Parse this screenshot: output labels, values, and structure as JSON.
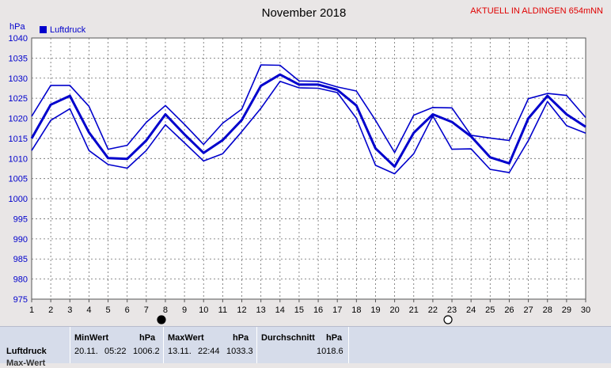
{
  "chart_data": {
    "type": "line",
    "title": "November 2018",
    "note": "AKTUELL IN ALDINGEN 654mNN",
    "ylabel": "hPa",
    "ylim": [
      975,
      1040
    ],
    "yticks": [
      975,
      980,
      985,
      990,
      995,
      1000,
      1005,
      1010,
      1015,
      1020,
      1025,
      1030,
      1035,
      1040
    ],
    "x": [
      1,
      2,
      3,
      4,
      5,
      6,
      7,
      8,
      9,
      10,
      11,
      12,
      13,
      14,
      15,
      16,
      17,
      18,
      19,
      20,
      21,
      22,
      23,
      24,
      25,
      26,
      27,
      28,
      29,
      30
    ],
    "legend": [
      {
        "name": "Luftdruck",
        "color": "#0000cc"
      }
    ],
    "series": [
      {
        "name": "Luftdruck",
        "role": "max",
        "values": [
          1020.5,
          1028.2,
          1028.2,
          1023.0,
          1012.3,
          1013.3,
          1019.0,
          1023.2,
          1018.5,
          1013.5,
          1018.8,
          1022.3,
          1033.3,
          1033.2,
          1029.3,
          1029.2,
          1027.8,
          1026.8,
          1019.5,
          1011.5,
          1020.8,
          1022.7,
          1022.6,
          1015.8,
          1015.1,
          1014.5,
          1024.9,
          1026.2,
          1025.7,
          1020.2
        ]
      },
      {
        "name": "Luftdruck",
        "role": "mean",
        "values": [
          1015.0,
          1023.4,
          1025.6,
          1016.5,
          1010.1,
          1009.9,
          1014.5,
          1021.0,
          1016.0,
          1011.4,
          1014.6,
          1019.6,
          1028.1,
          1030.9,
          1028.4,
          1028.4,
          1027.1,
          1023.2,
          1012.5,
          1008.0,
          1016.4,
          1021.0,
          1019.1,
          1015.5,
          1010.3,
          1008.8,
          1020.0,
          1025.6,
          1021.0,
          1017.9
        ]
      },
      {
        "name": "Luftdruck",
        "role": "min",
        "values": [
          1012.0,
          1019.5,
          1022.4,
          1012.0,
          1008.5,
          1007.6,
          1012.0,
          1018.4,
          1013.9,
          1009.4,
          1011.2,
          1016.7,
          1022.5,
          1029.2,
          1027.6,
          1027.5,
          1026.4,
          1020.0,
          1008.3,
          1006.2,
          1011.2,
          1020.6,
          1012.3,
          1012.4,
          1007.3,
          1006.5,
          1014.5,
          1024.2,
          1018.2,
          1016.3
        ]
      }
    ],
    "markers": [
      {
        "x": 8,
        "icon": "full-moon-icon",
        "filled": true
      },
      {
        "x": 23,
        "icon": "new-moon-icon",
        "filled": false
      }
    ],
    "grid": true
  },
  "stats": {
    "row_label": "Luftdruck",
    "row_label_2": "Max-Wert",
    "min": {
      "header": "MinWert",
      "unit": "hPa",
      "date": "20.11.",
      "time": "05:22",
      "value": "1006.2"
    },
    "max": {
      "header": "MaxWert",
      "unit": "hPa",
      "date": "13.11.",
      "time": "22:44",
      "value": "1033.3"
    },
    "avg": {
      "header": "Durchschnitt",
      "unit": "hPa",
      "value": "1018.6"
    }
  }
}
